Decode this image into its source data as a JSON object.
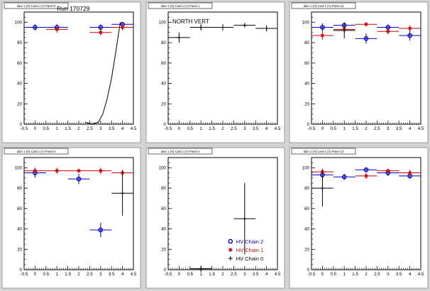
{
  "chart_data": [
    {
      "type": "scatter",
      "pad_label": "dam 1 (H) Card 1 (V) Panel 0",
      "title": "Run 170729",
      "xlim": [
        -0.5,
        4.5
      ],
      "ylim": [
        0,
        110
      ],
      "x_ticks": [
        "-0.5",
        "0",
        "0.5",
        "1",
        "1.5",
        "2",
        "2.5",
        "3",
        "3.5",
        "4",
        "4.5"
      ],
      "y_ticks": [
        "0",
        "20",
        "40",
        "60",
        "80",
        "100"
      ],
      "series": [
        {
          "name": "HV Chain 2",
          "color": "#0000cc",
          "marker": "circle",
          "points": [
            {
              "x": 0,
              "y": 95,
              "ex": 0.5,
              "ey": 3
            },
            {
              "x": 1,
              "y": 95,
              "ex": 0.5,
              "ey": 3
            },
            {
              "x": 3,
              "y": 95,
              "ex": 0.5,
              "ey": 3
            },
            {
              "x": 4,
              "y": 98,
              "ex": 0.5,
              "ey": 2
            }
          ]
        },
        {
          "name": "HV Chain 1",
          "color": "#cc0000",
          "marker": "star",
          "points": [
            {
              "x": 1,
              "y": 93,
              "ex": 0.5,
              "ey": 3
            },
            {
              "x": 3,
              "y": 90,
              "ex": 0.5,
              "ey": 3
            },
            {
              "x": 4,
              "y": 95,
              "ex": 0.5,
              "ey": 3
            }
          ]
        }
      ],
      "fit_curve": {
        "color": "#000000",
        "x": [
          2.3,
          2.6,
          2.9,
          3.1,
          3.3,
          3.5,
          3.7,
          3.9
        ],
        "y": [
          2,
          0,
          2,
          10,
          25,
          45,
          72,
          100
        ]
      }
    },
    {
      "type": "scatter",
      "pad_label": "dam 1 (H) Card 1 (V) Panel 1",
      "title": "NORTH VERT",
      "xlim": [
        -0.5,
        4.5
      ],
      "ylim": [
        0,
        110
      ],
      "x_ticks": [
        "-0.5",
        "0",
        "0.5",
        "1",
        "1.5",
        "2",
        "2.5",
        "3",
        "3.5",
        "4",
        "4.5"
      ],
      "y_ticks": [
        "0",
        "20",
        "40",
        "60",
        "80",
        "100"
      ],
      "series": [
        {
          "name": "HV Chain 0",
          "color": "#000000",
          "marker": "plus",
          "points": [
            {
              "x": 0,
              "y": 85,
              "ex": 0.5,
              "ey": 5
            },
            {
              "x": 1,
              "y": 95,
              "ex": 0.5,
              "ey": 3
            },
            {
              "x": 2,
              "y": 95,
              "ex": 0.5,
              "ey": 3
            },
            {
              "x": 3,
              "y": 97,
              "ex": 0.5,
              "ey": 2
            },
            {
              "x": 4,
              "y": 94,
              "ex": 0.5,
              "ey": 3
            }
          ]
        }
      ]
    },
    {
      "type": "scatter",
      "pad_label": "dam 1 (H) Card 1 (V) Panel 12",
      "title": "",
      "xlim": [
        -0.5,
        4.5
      ],
      "ylim": [
        0,
        110
      ],
      "x_ticks": [
        "-0.5",
        "0",
        "0.5",
        "1",
        "1.5",
        "2",
        "2.5",
        "3",
        "3.5",
        "4",
        "4.5"
      ],
      "y_ticks": [
        "0",
        "20",
        "40",
        "60",
        "80",
        "100"
      ],
      "series": [
        {
          "name": "HV Chain 2",
          "color": "#0000cc",
          "marker": "circle",
          "points": [
            {
              "x": 0,
              "y": 95,
              "ex": 0.5,
              "ey": 4
            },
            {
              "x": 1,
              "y": 97,
              "ex": 0.5,
              "ey": 3
            },
            {
              "x": 2,
              "y": 84,
              "ex": 0.5,
              "ey": 5
            },
            {
              "x": 3,
              "y": 95,
              "ex": 0.5,
              "ey": 3
            },
            {
              "x": 4,
              "y": 87,
              "ex": 0.5,
              "ey": 5
            }
          ]
        },
        {
          "name": "HV Chain 1",
          "color": "#cc0000",
          "marker": "star",
          "points": [
            {
              "x": 0,
              "y": 87,
              "ex": 0.5,
              "ey": 4
            },
            {
              "x": 1,
              "y": 93,
              "ex": 0.5,
              "ey": 3
            },
            {
              "x": 2,
              "y": 98,
              "ex": 0.5,
              "ey": 2
            },
            {
              "x": 3,
              "y": 91,
              "ex": 0.5,
              "ey": 3
            },
            {
              "x": 4,
              "y": 94,
              "ex": 0.5,
              "ey": 3
            }
          ]
        },
        {
          "name": "HV Chain 0",
          "color": "#000000",
          "marker": "plus",
          "points": [
            {
              "x": 1,
              "y": 92,
              "ex": 0.5,
              "ey": 8
            }
          ]
        }
      ]
    },
    {
      "type": "scatter",
      "pad_label": "dam 1 (H) Card 1 (V) Panel 3",
      "title": "",
      "xlim": [
        -0.5,
        4.5
      ],
      "ylim": [
        0,
        110
      ],
      "x_ticks": [
        "-0.5",
        "0",
        "0.5",
        "1",
        "1.5",
        "2",
        "2.5",
        "3",
        "3.5",
        "4",
        "4.5"
      ],
      "y_ticks": [
        "0",
        "20",
        "40",
        "60",
        "80",
        "100"
      ],
      "series": [
        {
          "name": "HV Chain 2",
          "color": "#0000cc",
          "marker": "circle",
          "points": [
            {
              "x": 0,
              "y": 95,
              "ex": 0.5,
              "ey": 5
            },
            {
              "x": 2,
              "y": 89,
              "ex": 0.5,
              "ey": 5
            },
            {
              "x": 3,
              "y": 39,
              "ex": 0.5,
              "ey": 7
            }
          ]
        },
        {
          "name": "HV Chain 1",
          "color": "#cc0000",
          "marker": "star",
          "points": [
            {
              "x": 0,
              "y": 97,
              "ex": 0.5,
              "ey": 3
            },
            {
              "x": 1,
              "y": 97,
              "ex": 0.5,
              "ey": 3
            },
            {
              "x": 2,
              "y": 97,
              "ex": 0.5,
              "ey": 2
            },
            {
              "x": 3,
              "y": 97,
              "ex": 0.5,
              "ey": 3
            },
            {
              "x": 4,
              "y": 95,
              "ex": 0.5,
              "ey": 3
            }
          ]
        },
        {
          "name": "HV Chain 0",
          "color": "#000000",
          "marker": "plus",
          "points": [
            {
              "x": 4,
              "y": 75,
              "ex": 0.5,
              "ey": 22
            }
          ]
        }
      ]
    },
    {
      "type": "scatter",
      "pad_label": "dam 1 (H) Card 1 (V) Panel 4",
      "title": "",
      "xlim": [
        -0.5,
        4.5
      ],
      "ylim": [
        0,
        110
      ],
      "x_ticks": [
        "-0.5",
        "0",
        "0.5",
        "1",
        "1.5",
        "2",
        "2.5",
        "3",
        "3.5",
        "4",
        "4.5"
      ],
      "y_ticks": [
        "0",
        "20",
        "40",
        "60",
        "80",
        "100"
      ],
      "series": [
        {
          "name": "HV Chain 0",
          "color": "#000000",
          "marker": "plus",
          "points": [
            {
              "x": 1,
              "y": 1,
              "ex": 0.5,
              "ey": 3
            },
            {
              "x": 3,
              "y": 50,
              "ex": 0.5,
              "ey": 35
            }
          ]
        }
      ],
      "legend": [
        {
          "label": "HV Chain 2",
          "color": "#0000cc",
          "marker": "circle"
        },
        {
          "label": "HV Chain 1",
          "color": "#cc0000",
          "marker": "star"
        },
        {
          "label": "HV Chain 0",
          "color": "#000000",
          "marker": "plus"
        }
      ]
    },
    {
      "type": "scatter",
      "pad_label": "dam 1 (H) Card 1 (V) Panel 13",
      "title": "",
      "xlim": [
        -0.5,
        4.5
      ],
      "ylim": [
        0,
        110
      ],
      "x_ticks": [
        "-0.5",
        "0",
        "0.5",
        "1",
        "1.5",
        "2",
        "2.5",
        "3",
        "3.5",
        "4",
        "4.5"
      ],
      "y_ticks": [
        "0",
        "20",
        "40",
        "60",
        "80",
        "100"
      ],
      "series": [
        {
          "name": "HV Chain 2",
          "color": "#0000cc",
          "marker": "circle",
          "points": [
            {
              "x": 0,
              "y": 93,
              "ex": 0.5,
              "ey": 4
            },
            {
              "x": 1,
              "y": 91,
              "ex": 0.5,
              "ey": 3
            },
            {
              "x": 2,
              "y": 98,
              "ex": 0.5,
              "ey": 2
            },
            {
              "x": 3,
              "y": 95,
              "ex": 0.5,
              "ey": 3
            },
            {
              "x": 4,
              "y": 92,
              "ex": 0.5,
              "ey": 3
            }
          ]
        },
        {
          "name": "HV Chain 1",
          "color": "#cc0000",
          "marker": "star",
          "points": [
            {
              "x": 0,
              "y": 96,
              "ex": 0.5,
              "ey": 3
            },
            {
              "x": 2,
              "y": 92,
              "ex": 0.5,
              "ey": 3
            },
            {
              "x": 3,
              "y": 97,
              "ex": 0.5,
              "ey": 2
            },
            {
              "x": 4,
              "y": 95,
              "ex": 0.5,
              "ey": 3
            }
          ]
        },
        {
          "name": "HV Chain 0",
          "color": "#000000",
          "marker": "plus",
          "points": [
            {
              "x": 0,
              "y": 80,
              "ex": 0.5,
              "ey": 18
            }
          ]
        }
      ]
    }
  ]
}
